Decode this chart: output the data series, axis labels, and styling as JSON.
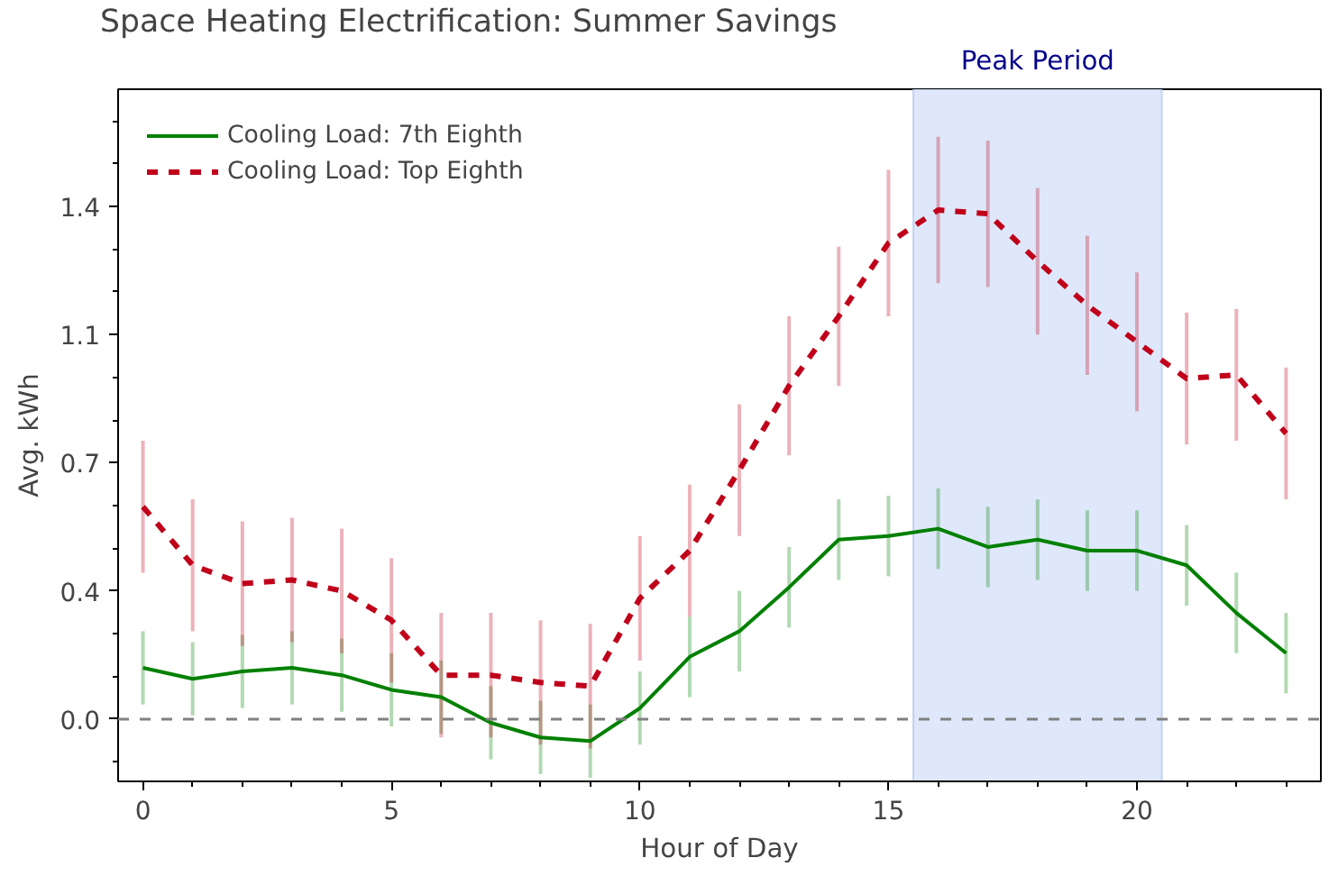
{
  "chart_data": {
    "type": "line",
    "title": "Space Heating Electrification: Summer Savings",
    "xlabel": "Hour of Day",
    "ylabel": "Avg. kWh",
    "x": [
      0,
      1,
      2,
      3,
      4,
      5,
      6,
      7,
      8,
      9,
      10,
      11,
      12,
      13,
      14,
      15,
      16,
      17,
      18,
      19,
      20,
      21,
      22,
      23
    ],
    "series": [
      {
        "name": "Cooling Load: 7th Eighth",
        "color": "#008000",
        "line_style": "solid",
        "values": [
          0.14,
          0.11,
          0.13,
          0.14,
          0.12,
          0.08,
          0.06,
          -0.01,
          -0.05,
          -0.06,
          0.03,
          0.17,
          0.24,
          0.36,
          0.49,
          0.5,
          0.52,
          0.47,
          0.49,
          0.46,
          0.46,
          0.42,
          0.29,
          0.18
        ],
        "errors": [
          0.1,
          0.1,
          0.1,
          0.1,
          0.1,
          0.1,
          0.1,
          0.1,
          0.1,
          0.1,
          0.1,
          0.11,
          0.11,
          0.11,
          0.11,
          0.11,
          0.11,
          0.11,
          0.11,
          0.11,
          0.11,
          0.11,
          0.11,
          0.11
        ]
      },
      {
        "name": "Cooling Load: Top Eighth",
        "color": "#c0001a",
        "line_style": "dashed",
        "values": [
          0.58,
          0.42,
          0.37,
          0.38,
          0.35,
          0.27,
          0.12,
          0.12,
          0.1,
          0.09,
          0.33,
          0.46,
          0.68,
          0.91,
          1.1,
          1.3,
          1.39,
          1.38,
          1.25,
          1.13,
          1.03,
          0.93,
          0.94,
          0.78
        ],
        "errors": [
          0.18,
          0.18,
          0.17,
          0.17,
          0.17,
          0.17,
          0.17,
          0.17,
          0.17,
          0.17,
          0.17,
          0.18,
          0.18,
          0.19,
          0.19,
          0.2,
          0.2,
          0.2,
          0.2,
          0.19,
          0.19,
          0.18,
          0.18,
          0.18
        ]
      }
    ],
    "xlim": [
      -0.5,
      23.7
    ],
    "ylim": [
      -0.17,
      1.72
    ],
    "xticks": [
      0,
      5,
      10,
      15,
      20
    ],
    "yticks": [
      {
        "value": 0,
        "label": "0.0"
      },
      {
        "value": 0.35,
        "label": "0.4"
      },
      {
        "value": 0.7,
        "label": "0.7"
      },
      {
        "value": 1.05,
        "label": "1.1"
      },
      {
        "value": 1.4,
        "label": "1.4"
      }
    ],
    "ref_lines": [
      {
        "axis": "y",
        "value": 0,
        "color": "#808080",
        "line_style": "dashed"
      }
    ],
    "bands": [
      {
        "axis": "x",
        "from": 15.5,
        "to": 20.5,
        "label": "Peak Period",
        "color": "#dce6fa"
      }
    ],
    "legend": "top left",
    "grid": false
  }
}
